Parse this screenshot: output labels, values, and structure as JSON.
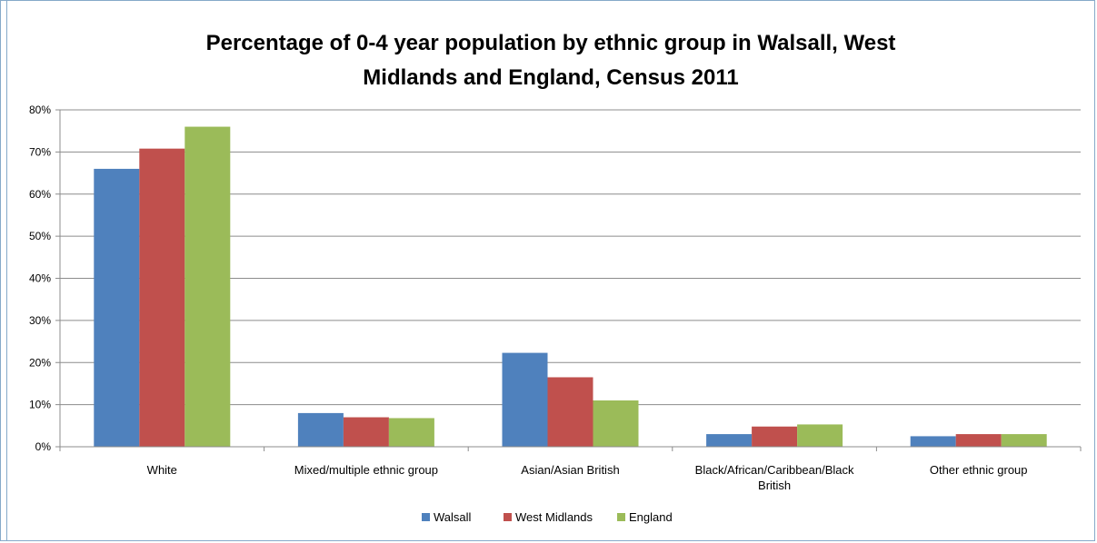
{
  "colors": {
    "walsall": "#4f81bd",
    "west_midlands": "#c0504d",
    "england": "#9bbb59",
    "gridline": "#8c8c8c",
    "frame": "#86a9c9"
  },
  "chart_data": {
    "type": "bar",
    "title_line1": "Percentage of 0-4 year population by ethnic group in Walsall, West",
    "title_line2": "Midlands and England, Census 2011",
    "categories": [
      [
        "White"
      ],
      [
        "Mixed/multiple ethnic group"
      ],
      [
        "Asian/Asian British"
      ],
      [
        "Black/African/Caribbean/Black",
        "British"
      ],
      [
        "Other ethnic group"
      ]
    ],
    "series": [
      {
        "name": "Walsall",
        "color": "#4f81bd",
        "values": [
          66,
          8,
          22.3,
          3,
          2.5
        ]
      },
      {
        "name": "West Midlands",
        "color": "#c0504d",
        "values": [
          70.8,
          7,
          16.5,
          4.8,
          3
        ]
      },
      {
        "name": "England",
        "color": "#9bbb59",
        "values": [
          76,
          6.8,
          11,
          5.3,
          3
        ]
      }
    ],
    "ylim": [
      0,
      80
    ],
    "yticks": [
      "0%",
      "10%",
      "20%",
      "30%",
      "40%",
      "50%",
      "60%",
      "70%",
      "80%"
    ],
    "grid": true,
    "legend_position": "bottom"
  }
}
